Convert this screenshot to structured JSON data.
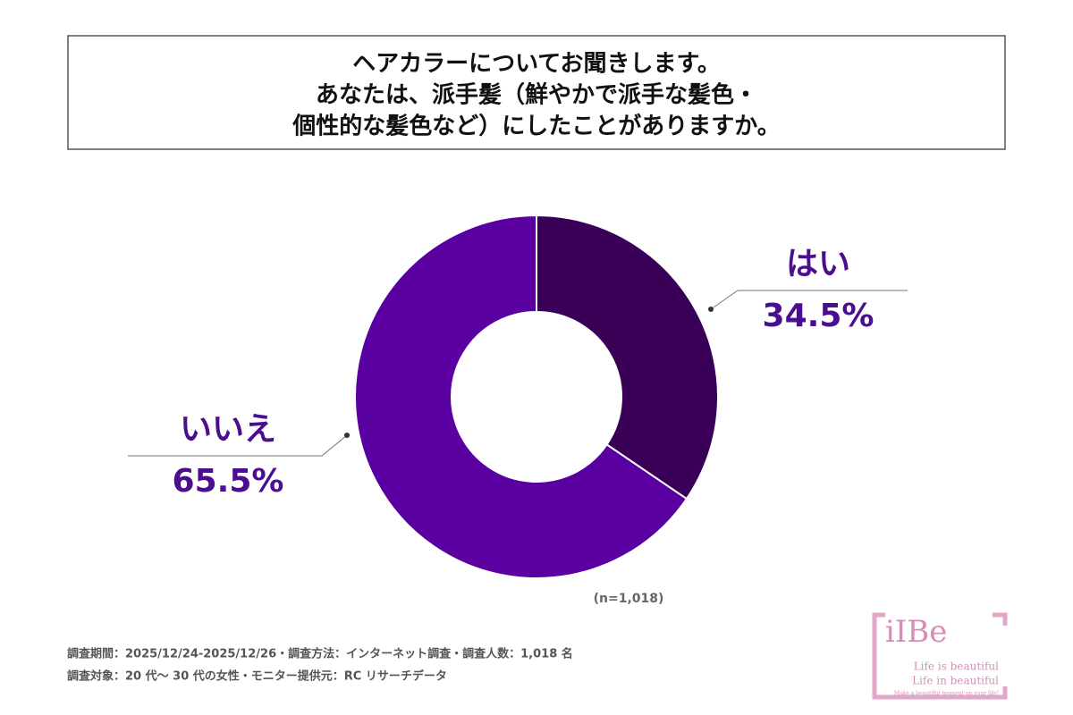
{
  "chart_data": {
    "type": "donut",
    "title": [
      "ヘアカラーについてお聞きします。",
      "あなたは、派手髪（鮮やかで派手な髪色・",
      "個性的な髪色など）にしたことがありますか。"
    ],
    "categories": [
      "はい",
      "いいえ"
    ],
    "values": [
      34.5,
      65.5
    ],
    "value_labels": [
      "34.5%",
      "65.5%"
    ],
    "colors": [
      "#3a0058",
      "#5a00a0"
    ],
    "note": "(n=1,018)",
    "footer": [
      "調査期間：2025/12/24-2025/12/26・調査方法：インターネット調査・調査人数：1,018 名",
      "調査対象：20 代～ 30 代の女性・モニター提供元：RC リサーチデータ"
    ],
    "logo": {
      "brand": "iIBe",
      "lines": [
        "Life is beautiful",
        "Life in beautiful",
        "Make a beautiful moment on your life!"
      ]
    }
  }
}
